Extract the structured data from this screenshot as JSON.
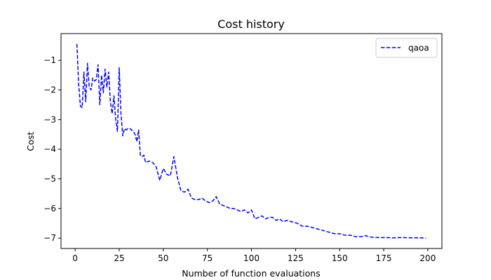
{
  "chart_data": {
    "type": "line",
    "title": "Cost history",
    "xlabel": "Number of function evaluations",
    "ylabel": "Cost",
    "xlim": [
      -8,
      208
    ],
    "ylim": [
      -7.35,
      -0.1
    ],
    "xticks": [
      0,
      25,
      50,
      75,
      100,
      125,
      150,
      175,
      200
    ],
    "yticks": [
      -7,
      -6,
      -5,
      -4,
      -3,
      -2,
      -1
    ],
    "grid": false,
    "legend_position": "top-right",
    "series": [
      {
        "name": "qaoa",
        "color": "#0000ff",
        "linestyle": "dashed",
        "x": [
          1,
          2,
          3,
          4,
          5,
          6,
          7,
          8,
          9,
          10,
          11,
          12,
          13,
          14,
          15,
          16,
          17,
          18,
          19,
          20,
          21,
          22,
          23,
          24,
          25,
          26,
          27,
          28,
          29,
          30,
          31,
          32,
          33,
          34,
          35,
          36,
          37,
          38,
          39,
          40,
          42,
          44,
          46,
          48,
          50,
          52,
          54,
          56,
          58,
          60,
          62,
          64,
          66,
          68,
          70,
          72,
          74,
          76,
          78,
          80,
          82,
          84,
          86,
          88,
          90,
          92,
          94,
          96,
          98,
          100,
          102,
          104,
          106,
          108,
          110,
          112,
          114,
          116,
          118,
          120,
          123,
          126,
          129,
          132,
          135,
          138,
          141,
          144,
          147,
          150,
          153,
          156,
          159,
          162,
          165,
          168,
          172,
          176,
          180,
          185,
          190,
          195,
          199
        ],
        "y": [
          -0.45,
          -1.8,
          -2.55,
          -2.6,
          -1.4,
          -2.4,
          -1.1,
          -1.9,
          -2.0,
          -1.6,
          -1.7,
          -1.65,
          -1.15,
          -2.5,
          -1.5,
          -2.1,
          -1.3,
          -1.9,
          -1.4,
          -2.4,
          -2.8,
          -2.2,
          -3.0,
          -3.4,
          -1.25,
          -2.8,
          -3.55,
          -3.3,
          -3.35,
          -3.3,
          -3.3,
          -3.35,
          -3.4,
          -3.5,
          -3.75,
          -3.35,
          -4.2,
          -4.25,
          -4.2,
          -4.45,
          -4.4,
          -4.45,
          -4.6,
          -5.05,
          -4.65,
          -4.85,
          -4.9,
          -4.25,
          -4.95,
          -5.4,
          -5.45,
          -5.35,
          -5.65,
          -5.7,
          -5.7,
          -5.65,
          -5.75,
          -5.8,
          -5.75,
          -5.6,
          -5.85,
          -5.9,
          -5.95,
          -6.0,
          -6.0,
          -6.05,
          -6.1,
          -6.05,
          -6.15,
          -6.05,
          -6.35,
          -6.3,
          -6.25,
          -6.35,
          -6.3,
          -6.3,
          -6.4,
          -6.35,
          -6.45,
          -6.4,
          -6.45,
          -6.5,
          -6.6,
          -6.6,
          -6.65,
          -6.7,
          -6.75,
          -6.8,
          -6.85,
          -6.85,
          -6.9,
          -6.9,
          -6.95,
          -6.95,
          -6.92,
          -6.97,
          -6.98,
          -6.98,
          -6.99,
          -6.98,
          -6.99,
          -6.99,
          -7.0
        ]
      }
    ]
  }
}
